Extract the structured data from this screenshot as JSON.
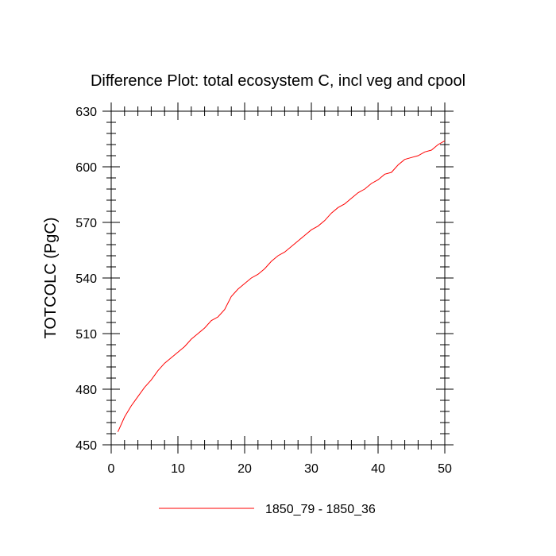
{
  "chart_data": {
    "type": "line",
    "title": "Difference Plot: total ecosystem C, incl veg and cpool",
    "xlabel": "",
    "ylabel": "TOTCOLC  (PgC)",
    "xlim": [
      0,
      50
    ],
    "ylim": [
      450,
      630
    ],
    "xticks": [
      0,
      10,
      20,
      30,
      40,
      50
    ],
    "yticks": [
      450,
      480,
      510,
      540,
      570,
      600,
      630
    ],
    "x_minor_step": 2,
    "y_minor_step": 6,
    "grid": false,
    "legend_position": "bottom-center",
    "series": [
      {
        "name": "1850_79 - 1850_36",
        "color": "#ff0000",
        "x": [
          1,
          2,
          3,
          4,
          5,
          6,
          7,
          8,
          9,
          10,
          11,
          12,
          13,
          14,
          15,
          16,
          17,
          18,
          19,
          20,
          21,
          22,
          23,
          24,
          25,
          26,
          27,
          28,
          29,
          30,
          31,
          32,
          33,
          34,
          35,
          36,
          37,
          38,
          39,
          40,
          41,
          42,
          43,
          44,
          45,
          46,
          47,
          48,
          49,
          50
        ],
        "y": [
          457,
          465,
          471,
          476,
          481,
          485,
          490,
          494,
          497,
          500,
          503,
          507,
          510,
          513,
          517,
          519,
          523,
          530,
          534,
          537,
          540,
          542,
          545,
          549,
          552,
          554,
          557,
          560,
          563,
          566,
          568,
          571,
          575,
          578,
          580,
          583,
          586,
          588,
          591,
          593,
          596,
          597,
          601,
          604,
          605,
          606,
          608,
          609,
          612,
          614
        ]
      }
    ]
  }
}
